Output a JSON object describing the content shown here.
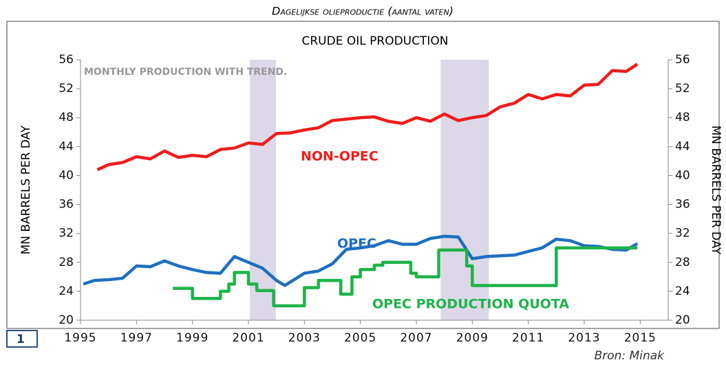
{
  "heading": "Dagelijkse olieproductie (aantal vaten)",
  "figure_number": "1",
  "source": "Bron: Minak",
  "chart_data": {
    "type": "line",
    "title": "CRUDE OIL PRODUCTION",
    "ylabel": "MN BARRELS PER DAY",
    "y2label": "MN BARRELS PER DAY",
    "xlim": [
      1995,
      2016
    ],
    "xticks": [
      1995,
      1997,
      1999,
      2001,
      2003,
      2005,
      2007,
      2009,
      2011,
      2013,
      2015
    ],
    "ylim": [
      20,
      56
    ],
    "yticks": [
      20,
      24,
      28,
      32,
      36,
      40,
      44,
      48,
      52,
      56
    ],
    "y2lim": [
      20,
      56
    ],
    "y2ticks": [
      20,
      24,
      28,
      32,
      36,
      40,
      44,
      48,
      52,
      56
    ],
    "shaded_periods": [
      [
        2001.05,
        2001.98
      ],
      [
        2007.87,
        2009.59
      ]
    ],
    "shade_color": "#dcd8e8",
    "annotations": [
      "MONTHLY PRODUCTION WITH TREND.",
      "NON-OPEC",
      "OPEC",
      "OPEC PRODUCTION QUOTA"
    ],
    "series": [
      {
        "name": "NON-OPEC",
        "color": "#ee1c1c",
        "x": [
          1995.6,
          1996,
          1996.5,
          1997,
          1997.5,
          1998,
          1998.5,
          1999,
          1999.5,
          2000,
          2000.5,
          2001,
          2001.5,
          2002,
          2002.5,
          2003,
          2003.5,
          2004,
          2004.5,
          2005,
          2005.5,
          2006,
          2006.5,
          2007,
          2007.5,
          2008,
          2008.5,
          2009,
          2009.5,
          2010,
          2010.5,
          2011,
          2011.5,
          2012,
          2012.5,
          2013,
          2013.5,
          2014,
          2014.5,
          2014.9
        ],
        "values": [
          40.8,
          41.5,
          41.8,
          42.6,
          42.3,
          43.4,
          42.5,
          42.8,
          42.6,
          43.6,
          43.8,
          44.5,
          44.3,
          45.8,
          45.9,
          46.3,
          46.6,
          47.6,
          47.8,
          48.0,
          48.1,
          47.5,
          47.2,
          48.0,
          47.5,
          48.5,
          47.6,
          48.0,
          48.3,
          49.5,
          50.0,
          51.2,
          50.6,
          51.2,
          51.0,
          52.5,
          52.6,
          54.5,
          54.4,
          55.4
        ]
      },
      {
        "name": "OPEC",
        "color": "#1f6fbf",
        "x": [
          1995.1,
          1995.5,
          1996,
          1996.5,
          1997,
          1997.5,
          1998,
          1998.5,
          1999,
          1999.5,
          2000,
          2000.5,
          2001,
          2001.5,
          2002,
          2002.3,
          2002.8,
          2003,
          2003.5,
          2004,
          2004.5,
          2005,
          2005.5,
          2006,
          2006.5,
          2007,
          2007.5,
          2008,
          2008.5,
          2009,
          2009.5,
          2010,
          2010.5,
          2011,
          2011.5,
          2012,
          2012.5,
          2013,
          2013.5,
          2014,
          2014.5,
          2014.9
        ],
        "values": [
          25.0,
          25.5,
          25.6,
          25.8,
          27.5,
          27.4,
          28.2,
          27.5,
          27.0,
          26.6,
          26.5,
          28.8,
          28.0,
          27.2,
          25.5,
          24.8,
          26.0,
          26.5,
          26.8,
          27.8,
          29.8,
          30.0,
          30.3,
          31.0,
          30.5,
          30.5,
          31.3,
          31.6,
          31.5,
          28.5,
          28.8,
          28.9,
          29.0,
          29.5,
          30.0,
          31.2,
          31.0,
          30.3,
          30.2,
          29.8,
          29.7,
          30.6
        ]
      },
      {
        "name": "OPEC PRODUCTION QUOTA",
        "color": "#1db34a",
        "x": [
          1998.3,
          1999.0,
          1999.0,
          2000.0,
          2000.0,
          2000.3,
          2000.3,
          2000.5,
          2000.5,
          2001.0,
          2001.0,
          2001.3,
          2001.3,
          2001.9,
          2001.9,
          2003.0,
          2003.0,
          2003.5,
          2003.5,
          2004.3,
          2004.3,
          2004.7,
          2004.7,
          2005.0,
          2005.0,
          2005.5,
          2005.5,
          2005.8,
          2005.8,
          2006.8,
          2006.8,
          2007.0,
          2007.0,
          2007.8,
          2007.8,
          2008.8,
          2008.8,
          2009.0,
          2009.0,
          2012.0,
          2012.0,
          2014.9
        ],
        "values": [
          24.4,
          24.4,
          23.0,
          23.0,
          24.0,
          24.0,
          25.0,
          25.0,
          26.6,
          26.6,
          25.0,
          25.0,
          24.1,
          24.1,
          22.0,
          22.0,
          24.5,
          24.5,
          25.5,
          25.5,
          23.6,
          23.6,
          26.0,
          26.0,
          27.0,
          27.0,
          27.6,
          27.6,
          28.0,
          28.0,
          26.5,
          26.5,
          26.0,
          26.0,
          29.7,
          29.7,
          27.5,
          27.5,
          24.8,
          24.8,
          30.0,
          30.0
        ]
      }
    ]
  }
}
